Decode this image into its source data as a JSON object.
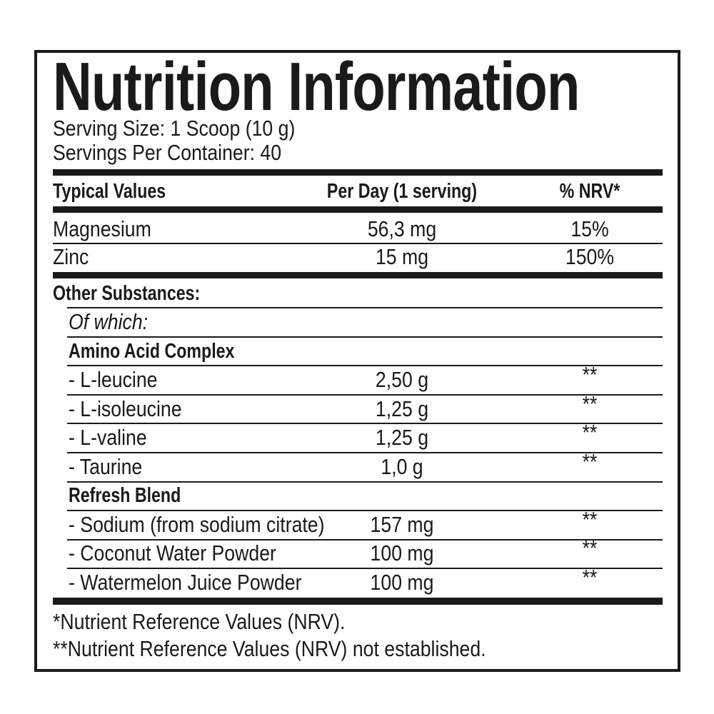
{
  "title": "Nutrition Information",
  "serving_size": "Serving Size: 1 Scoop (10 g)",
  "servings_per_container": "Servings Per Container: 40",
  "headers": {
    "typical": "Typical Values",
    "per_day": "Per Day (1 serving)",
    "nrv": "% NRV*"
  },
  "vitamins": [
    {
      "name": "Magnesium",
      "amount": "56,3 mg",
      "nrv": "15%"
    },
    {
      "name": "Zinc",
      "amount": "15 mg",
      "nrv": "150%"
    }
  ],
  "other_substances": "Other Substances:",
  "of_which": "Of which:",
  "amino": {
    "heading": "Amino Acid Complex",
    "items": [
      {
        "name": "- L-leucine",
        "amount": "2,50 g",
        "nrv": "**"
      },
      {
        "name": "- L-isoleucine",
        "amount": "1,25 g",
        "nrv": "**"
      },
      {
        "name": "- L-valine",
        "amount": "1,25 g",
        "nrv": "**"
      },
      {
        "name": "- Taurine",
        "amount": "1,0 g",
        "nrv": "**"
      }
    ]
  },
  "refresh": {
    "heading": "Refresh Blend",
    "items": [
      {
        "name": "- Sodium (from sodium citrate)",
        "amount": "157 mg",
        "nrv": "**"
      },
      {
        "name": "- Coconut Water Powder",
        "amount": "100 mg",
        "nrv": "**"
      },
      {
        "name": "- Watermelon Juice Powder",
        "amount": "100 mg",
        "nrv": "**"
      }
    ]
  },
  "footnotes": [
    "*Nutrient Reference Values (NRV).",
    "**Nutrient Reference Values (NRV) not established."
  ]
}
